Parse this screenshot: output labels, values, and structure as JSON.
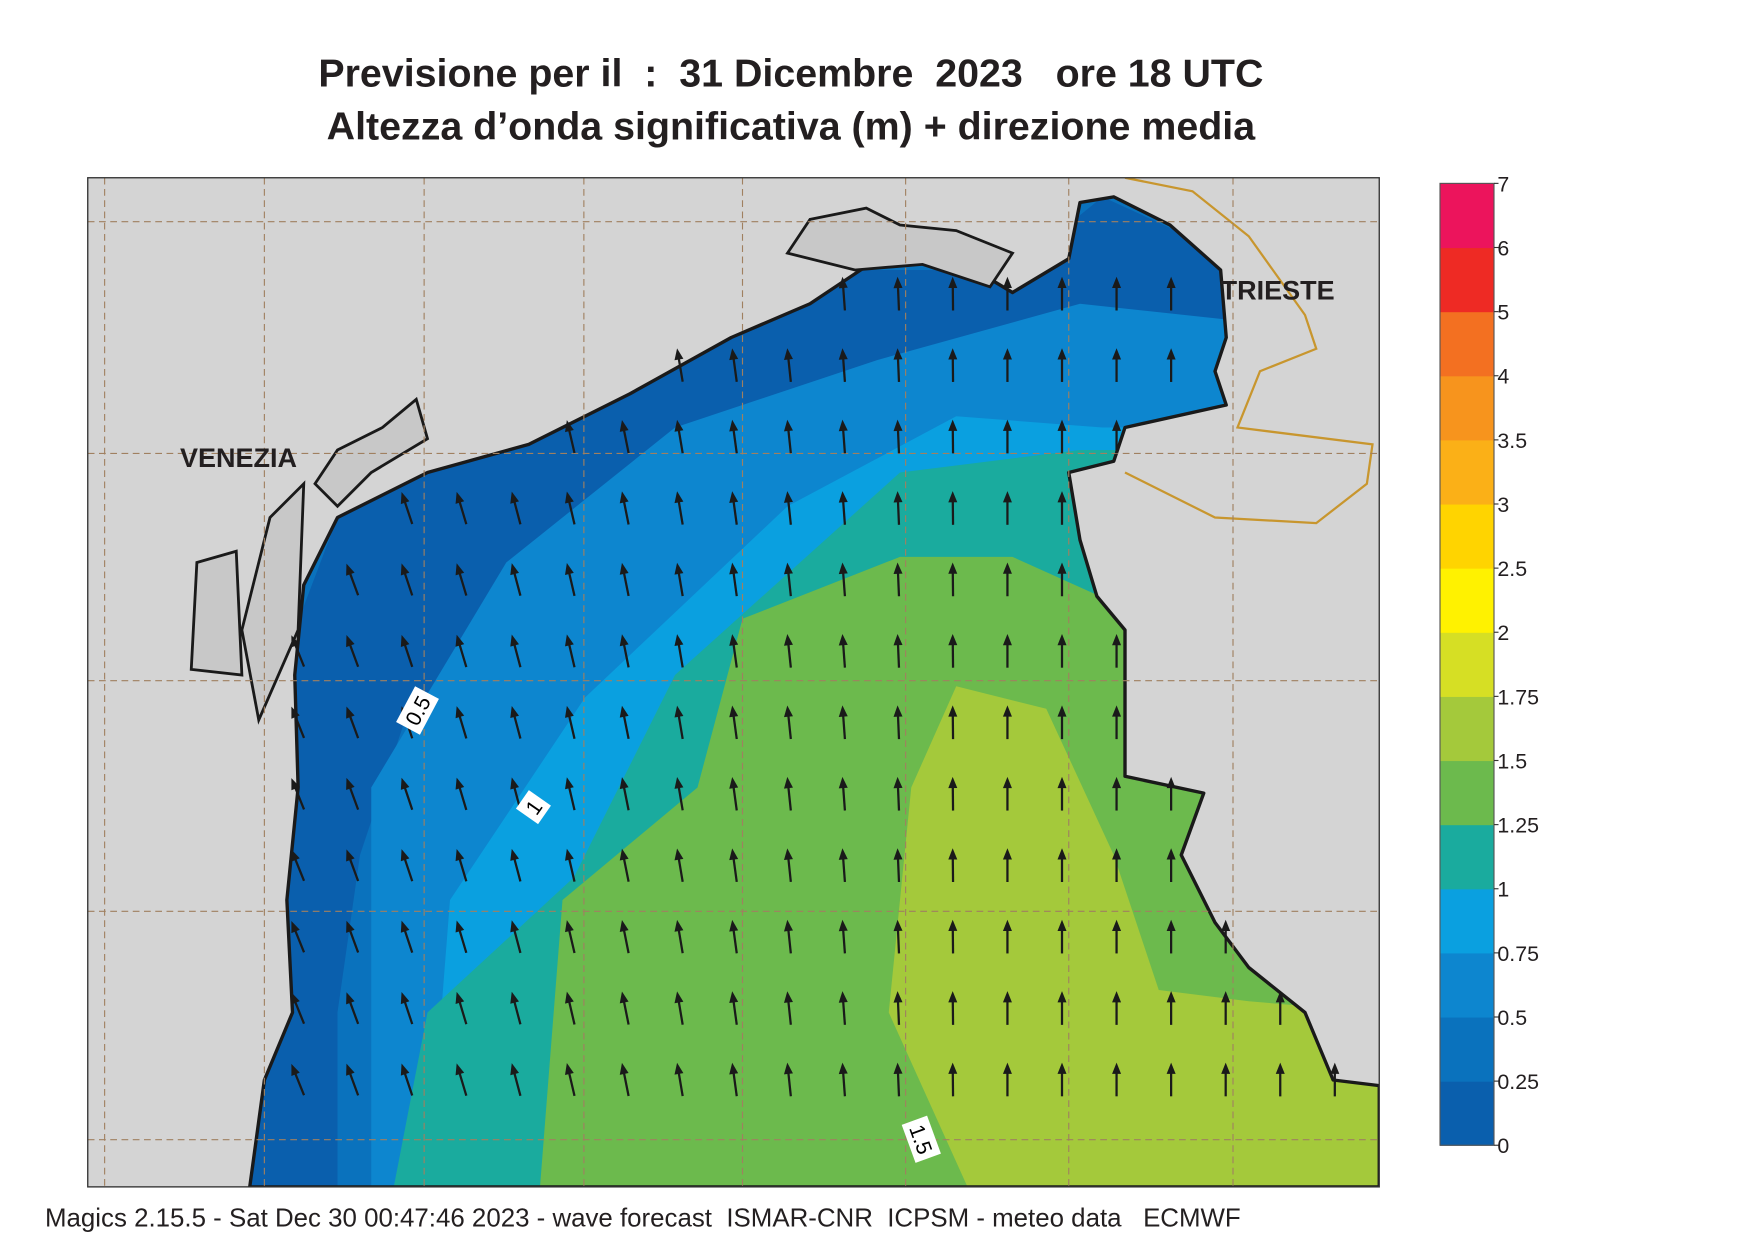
{
  "title": {
    "line1": "Previsione per il  :  31 Dicembre  2023   ore 18 UTC",
    "line2": "Altezza d’onda significativa (m) + direzione media"
  },
  "map": {
    "places": [
      "VENEZIA",
      "TRIESTE"
    ],
    "contour_labels": [
      0.5,
      1,
      1.5
    ]
  },
  "colorbar": {
    "levels": [
      0,
      0.25,
      0.5,
      0.75,
      1,
      1.25,
      1.5,
      1.75,
      2,
      2.5,
      3,
      3.5,
      4,
      5,
      6,
      7
    ],
    "colors": [
      "#0a5fad",
      "#0a72bd",
      "#0d86cf",
      "#0aa0e0",
      "#1aab9e",
      "#6cba4d",
      "#a4c93b",
      "#d6df24",
      "#fff200",
      "#ffd400",
      "#fbb017",
      "#f7941d",
      "#f37021",
      "#ee2a24",
      "#ec145c"
    ]
  },
  "footer": "Magics 2.15.5 - Sat Dec 30 00:47:46 2023 - wave forecast  ISMAR-CNR  ICPSM - meteo data   ECMWF"
}
